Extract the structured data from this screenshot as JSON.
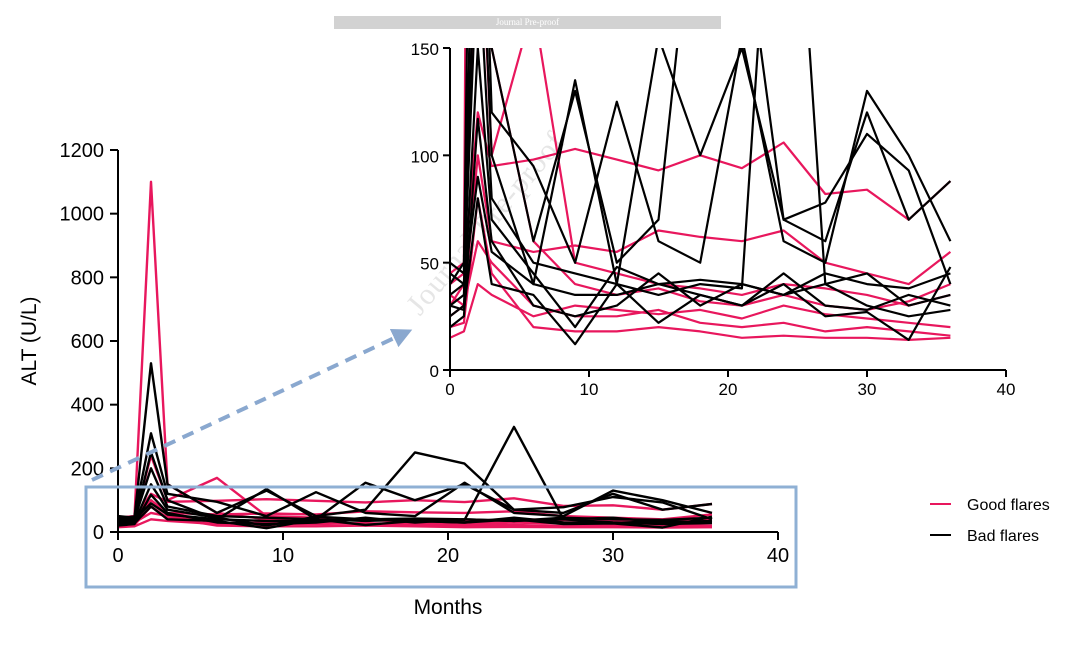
{
  "banner": {
    "text": "Journal Pre-proof"
  },
  "watermark": {
    "text": "Journal Pre-proof"
  },
  "colors": {
    "good": "#e8175d",
    "bad": "#000000",
    "highlight_box": "#8fb0d4",
    "arrow": "#8aa8cf"
  },
  "chart_data": [
    {
      "id": "main",
      "type": "line",
      "xlabel": "Months",
      "ylabel": "ALT (U/L)",
      "xlim": [
        0,
        40
      ],
      "ylim": [
        0,
        1200
      ],
      "xticks": [
        0,
        10,
        20,
        30,
        40
      ],
      "yticks": [
        0,
        200,
        400,
        600,
        800,
        1000,
        1200
      ],
      "legend": {
        "position": "right",
        "entries": [
          {
            "name": "Good flares",
            "color": "#e8175d"
          },
          {
            "name": "Bad flares",
            "color": "#000000"
          }
        ]
      },
      "x": [
        0,
        1,
        2,
        3,
        6,
        9,
        12,
        15,
        18,
        21,
        24,
        27,
        30,
        33,
        36
      ],
      "series": [
        {
          "group": "good",
          "values": [
            45,
            50,
            1100,
            150,
            60,
            40,
            35,
            38,
            32,
            30,
            35,
            30,
            28,
            32,
            40
          ]
        },
        {
          "group": "good",
          "values": [
            30,
            40,
            240,
            100,
            170,
            50,
            45,
            40,
            38,
            35,
            40,
            38,
            35,
            30,
            35
          ]
        },
        {
          "group": "good",
          "values": [
            40,
            45,
            120,
            95,
            98,
            103,
            98,
            93,
            100,
            94,
            106,
            82,
            84,
            70,
            88
          ]
        },
        {
          "group": "good",
          "values": [
            25,
            30,
            60,
            50,
            30,
            25,
            25,
            28,
            22,
            20,
            22,
            18,
            20,
            18,
            16
          ]
        },
        {
          "group": "good",
          "values": [
            20,
            22,
            80,
            45,
            20,
            18,
            18,
            20,
            18,
            15,
            16,
            15,
            15,
            14,
            15
          ]
        },
        {
          "group": "good",
          "values": [
            35,
            30,
            100,
            60,
            55,
            58,
            55,
            65,
            62,
            60,
            65,
            50,
            45,
            40,
            55
          ]
        },
        {
          "group": "good",
          "values": [
            15,
            18,
            40,
            35,
            25,
            30,
            28,
            26,
            28,
            24,
            30,
            26,
            24,
            22,
            20
          ]
        },
        {
          "group": "bad",
          "values": [
            50,
            45,
            530,
            150,
            60,
            130,
            50,
            70,
            250,
            215,
            70,
            60,
            120,
            70,
            88
          ]
        },
        {
          "group": "bad",
          "values": [
            40,
            50,
            310,
            120,
            95,
            50,
            125,
            60,
            50,
            155,
            60,
            50,
            130,
            100,
            60
          ]
        },
        {
          "group": "bad",
          "values": [
            30,
            35,
            250,
            100,
            40,
            135,
            40,
            35,
            40,
            38,
            330,
            40,
            45,
            30,
            35
          ]
        },
        {
          "group": "bad",
          "values": [
            35,
            40,
            200,
            80,
            50,
            45,
            40,
            155,
            100,
            150,
            70,
            78,
            110,
            93,
            40
          ]
        },
        {
          "group": "bad",
          "values": [
            25,
            30,
            150,
            70,
            45,
            20,
            48,
            40,
            35,
            30,
            45,
            30,
            28,
            35,
            30
          ]
        },
        {
          "group": "bad",
          "values": [
            20,
            25,
            117,
            60,
            30,
            25,
            30,
            45,
            30,
            40,
            35,
            40,
            30,
            25,
            28
          ]
        },
        {
          "group": "bad",
          "values": [
            45,
            40,
            90,
            55,
            40,
            35,
            35,
            40,
            42,
            40,
            35,
            45,
            40,
            38,
            45
          ]
        },
        {
          "group": "bad",
          "values": [
            30,
            28,
            80,
            40,
            35,
            12,
            40,
            22,
            35,
            30,
            40,
            25,
            27,
            14,
            48
          ]
        }
      ]
    },
    {
      "id": "inset",
      "type": "line",
      "xlim": [
        0,
        40
      ],
      "ylim": [
        0,
        150
      ],
      "xticks": [
        0,
        10,
        20,
        30,
        40
      ],
      "yticks": [
        0,
        50,
        100,
        150
      ],
      "series_ref": "main"
    }
  ]
}
